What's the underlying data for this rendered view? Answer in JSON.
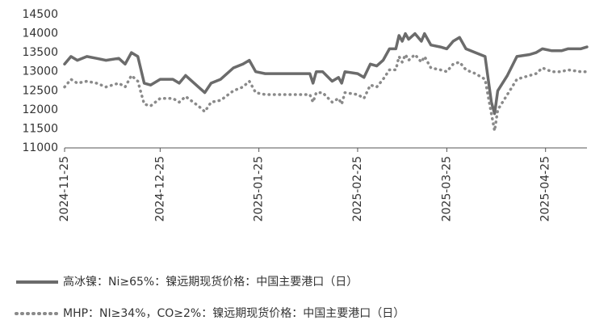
{
  "chart_data": {
    "type": "line",
    "x": [
      "2024-11-25",
      "2024-11-27",
      "2024-11-29",
      "2024-12-02",
      "2024-12-05",
      "2024-12-08",
      "2024-12-12",
      "2024-12-14",
      "2024-12-16",
      "2024-12-18",
      "2024-12-20",
      "2024-12-22",
      "2024-12-25",
      "2024-12-29",
      "2024-12-31",
      "2025-01-02",
      "2025-01-06",
      "2025-01-08",
      "2025-01-10",
      "2025-01-13",
      "2025-01-17",
      "2025-01-20",
      "2025-01-22",
      "2025-01-24",
      "2025-01-27",
      "2025-02-03",
      "2025-02-10",
      "2025-02-11",
      "2025-02-12",
      "2025-02-14",
      "2025-02-17",
      "2025-02-19",
      "2025-02-20",
      "2025-02-21",
      "2025-02-25",
      "2025-02-27",
      "2025-03-01",
      "2025-03-03",
      "2025-03-05",
      "2025-03-07",
      "2025-03-09",
      "2025-03-10",
      "2025-03-11",
      "2025-03-12",
      "2025-03-13",
      "2025-03-15",
      "2025-03-17",
      "2025-03-18",
      "2025-03-20",
      "2025-03-23",
      "2025-03-25",
      "2025-03-27",
      "2025-03-29",
      "2025-03-31",
      "2025-04-03",
      "2025-04-06",
      "2025-04-08",
      "2025-04-09",
      "2025-04-10",
      "2025-04-13",
      "2025-04-16",
      "2025-04-20",
      "2025-04-22",
      "2025-04-24",
      "2025-04-27",
      "2025-04-30",
      "2025-05-02",
      "2025-05-06",
      "2025-05-08"
    ],
    "series": [
      {
        "name": "高冰镍：Ni≥65%：镍远期现货价格：中国主要港口（日）",
        "color": "#6b6b6b",
        "style": "solid",
        "values": [
          13200,
          13400,
          13300,
          13400,
          13350,
          13300,
          13350,
          13200,
          13500,
          13400,
          12700,
          12650,
          12800,
          12800,
          12700,
          12900,
          12600,
          12450,
          12700,
          12800,
          13100,
          13200,
          13300,
          13000,
          12950,
          12950,
          12950,
          12700,
          13000,
          13000,
          12750,
          12850,
          12700,
          13000,
          12950,
          12850,
          13200,
          13150,
          13300,
          13600,
          13600,
          13950,
          13800,
          14000,
          13850,
          14000,
          13800,
          14000,
          13700,
          13650,
          13600,
          13800,
          13900,
          13600,
          13500,
          13400,
          12200,
          11900,
          12500,
          12900,
          13400,
          13450,
          13500,
          13600,
          13550,
          13550,
          13600,
          13600,
          13650
        ]
      },
      {
        "name": "MHP：NI≥34%，CO≥2%：镍远期现货价格：中国主要港口（日）",
        "color": "#8a8a8a",
        "style": "dotted",
        "values": [
          12600,
          12800,
          12700,
          12750,
          12700,
          12600,
          12700,
          12600,
          12900,
          12750,
          12150,
          12100,
          12300,
          12300,
          12200,
          12350,
          12100,
          11950,
          12200,
          12250,
          12500,
          12600,
          12750,
          12450,
          12400,
          12400,
          12400,
          12200,
          12450,
          12450,
          12200,
          12300,
          12150,
          12450,
          12400,
          12300,
          12650,
          12600,
          12800,
          13050,
          13050,
          13400,
          13250,
          13450,
          13300,
          13450,
          13250,
          13400,
          13100,
          13050,
          13000,
          13200,
          13250,
          13050,
          12950,
          12800,
          11900,
          11450,
          12000,
          12400,
          12800,
          12900,
          12950,
          13100,
          13000,
          13000,
          13050,
          13000,
          13000
        ]
      }
    ],
    "xlim": [
      "2024-11-25",
      "2025-05-08"
    ],
    "xticks": [
      "2024-11-25",
      "2024-12-25",
      "2025-01-25",
      "2025-02-25",
      "2025-03-25",
      "2025-04-25"
    ],
    "ylim": [
      11000,
      14500
    ],
    "yticks": [
      11000,
      11500,
      12000,
      12500,
      13000,
      13500,
      14000,
      14500
    ],
    "grid": false
  }
}
